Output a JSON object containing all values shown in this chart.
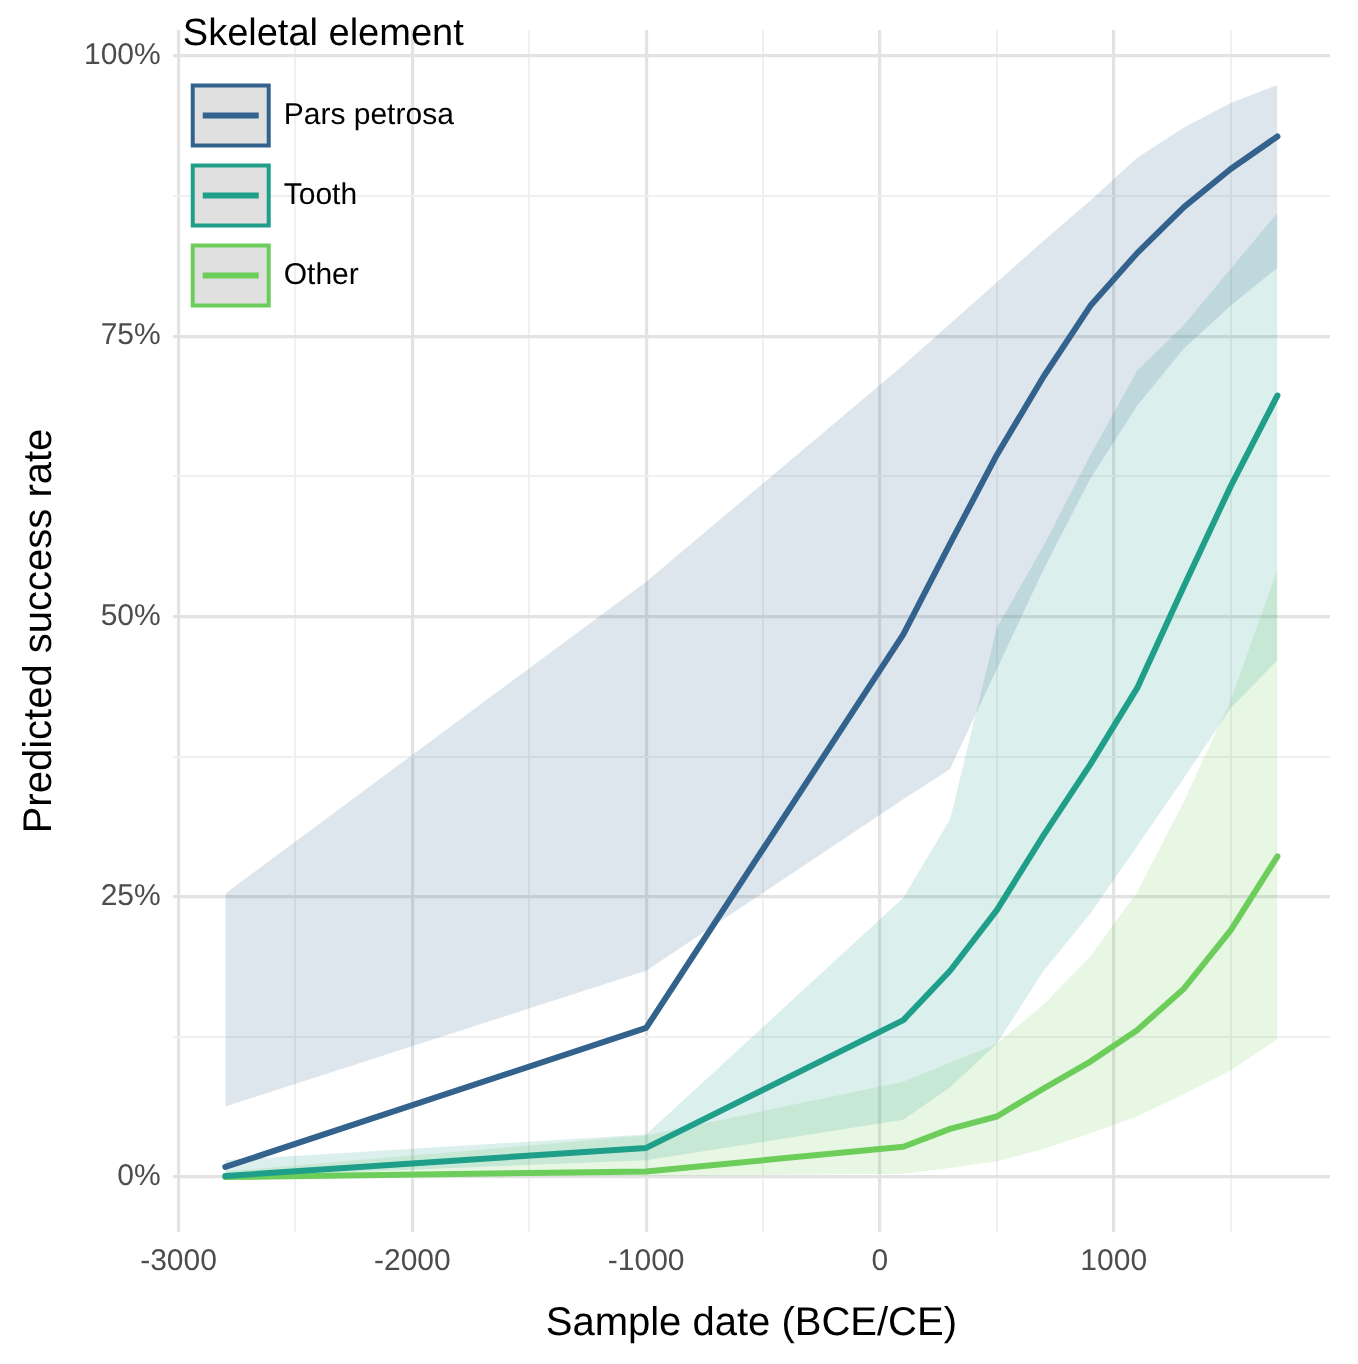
{
  "chart_data": {
    "type": "line",
    "xlabel": "Sample date (BCE/CE)",
    "ylabel": "Predicted success rate",
    "legend_title": "Skeletal element",
    "legend": "top left",
    "grid": true,
    "marker": "none",
    "line_style": "solid",
    "xlim": [
      -3025,
      1925
    ],
    "xticks": [
      -3000,
      {
        "value": -2500,
        "label": null
      },
      -2000,
      {
        "value": -1500,
        "label": null
      },
      -1000,
      {
        "value": -500,
        "label": null
      },
      0,
      {
        "value": 500,
        "label": null
      },
      1000,
      {
        "value": 1500,
        "label": null
      }
    ],
    "ylim": [
      -4.9,
      102.3
    ],
    "yticks": [
      {
        "value": 0,
        "label": "0%"
      },
      {
        "value": 12.5,
        "label": null
      },
      {
        "value": 25,
        "label": "25%"
      },
      {
        "value": 37.5,
        "label": null
      },
      {
        "value": 50,
        "label": "50%"
      },
      {
        "value": 62.5,
        "label": null
      },
      {
        "value": 75,
        "label": "75%"
      },
      {
        "value": 87.5,
        "label": null
      },
      {
        "value": 100,
        "label": "100%"
      }
    ],
    "x": [
      -2800,
      -1000,
      100,
      300,
      500,
      700,
      900,
      1100,
      1300,
      1500,
      1700
    ],
    "series": [
      {
        "name": "Pars petrosa",
        "color": "#33638d",
        "values": [
          0.9,
          13.3,
          48.4,
          56.5,
          64.4,
          71.4,
          77.7,
          82.4,
          86.5,
          89.9,
          92.8
        ],
        "lower": [
          6.3,
          18.4,
          33.7,
          36.4,
          45.3,
          54.2,
          62.3,
          68.8,
          73.9,
          77.7,
          81.1
        ],
        "upper": [
          25.3,
          53.1,
          72.4,
          76.1,
          79.8,
          83.5,
          87.1,
          90.9,
          93.6,
          95.8,
          97.4
        ]
      },
      {
        "name": "Tooth",
        "color": "#1f9e89",
        "values": [
          0.1,
          2.6,
          14.0,
          18.4,
          23.8,
          30.5,
          36.8,
          43.6,
          52.7,
          61.6,
          69.7
        ],
        "lower": [
          0.0,
          1.5,
          5.1,
          8.0,
          11.9,
          18.4,
          23.5,
          29.5,
          35.6,
          41.8,
          46.1
        ],
        "upper": [
          1.5,
          3.8,
          24.9,
          31.9,
          49.0,
          56.3,
          64.4,
          71.9,
          76.0,
          81.0,
          86.0
        ]
      },
      {
        "name": "Other",
        "color": "#6ccd5a",
        "values": [
          0.0,
          0.5,
          2.7,
          4.3,
          5.4,
          7.9,
          10.3,
          13.1,
          16.8,
          22.0,
          28.6
        ],
        "lower": [
          0.0,
          0.1,
          0.3,
          0.8,
          1.4,
          2.5,
          3.9,
          5.4,
          7.4,
          9.5,
          12.3
        ],
        "upper": [
          0.5,
          3.7,
          8.5,
          10.2,
          11.9,
          15.4,
          19.7,
          25.4,
          33.5,
          42.5,
          54.2
        ]
      }
    ]
  }
}
